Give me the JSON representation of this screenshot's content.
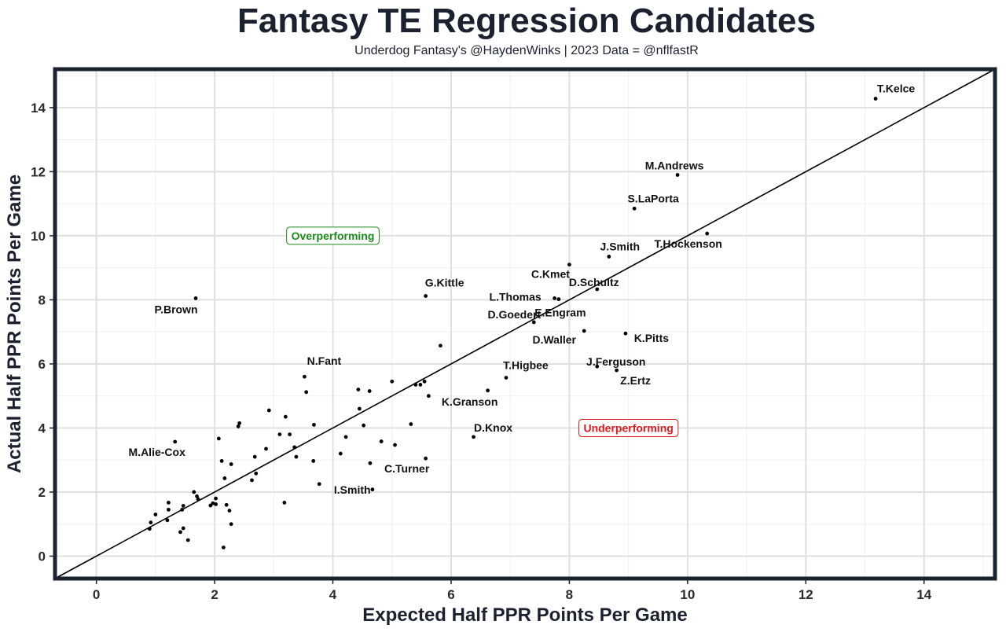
{
  "chart_data": {
    "type": "scatter",
    "title": "Fantasy TE Regression Candidates",
    "subtitle": "Underdog Fantasy's @HaydenWinks | 2023 Data = @nflfastR",
    "xlabel": "Expected Half PPR Points Per Game",
    "ylabel": "Actual Half PPR Points Per Game",
    "xlim": [
      -0.7,
      15.2
    ],
    "ylim": [
      -0.7,
      15.2
    ],
    "x_ticks": [
      0,
      2,
      4,
      6,
      8,
      10,
      12,
      14
    ],
    "y_ticks": [
      0,
      2,
      4,
      6,
      8,
      10,
      12,
      14
    ],
    "grid": true,
    "reference_line": "y = x",
    "annotations": [
      {
        "text": "Overperforming",
        "x": 4.0,
        "y": 10.0,
        "color": "#1a8a1a"
      },
      {
        "text": "Underperforming",
        "x": 9.0,
        "y": 4.0,
        "color": "#e3161b"
      }
    ],
    "labeled_points": [
      {
        "name": "T.Kelce",
        "x": 13.18,
        "y": 14.28
      },
      {
        "name": "M.Andrews",
        "x": 9.83,
        "y": 11.9
      },
      {
        "name": "S.LaPorta",
        "x": 9.1,
        "y": 10.85
      },
      {
        "name": "T.Hockenson",
        "x": 10.33,
        "y": 10.07
      },
      {
        "name": "J.Smith",
        "x": 8.67,
        "y": 9.35
      },
      {
        "name": "C.Kmet",
        "x": 8.0,
        "y": 9.1
      },
      {
        "name": "D.Schultz",
        "x": 8.47,
        "y": 8.33
      },
      {
        "name": "G.Kittle",
        "x": 5.57,
        "y": 8.12
      },
      {
        "name": "L.Thomas",
        "x": 7.75,
        "y": 8.05
      },
      {
        "name": "E.Engram",
        "x": 7.82,
        "y": 8.02
      },
      {
        "name": "P.Brown",
        "x": 1.68,
        "y": 8.05
      },
      {
        "name": "D.Goedert",
        "x": 7.4,
        "y": 7.3
      },
      {
        "name": "D.Waller",
        "x": 8.25,
        "y": 7.03
      },
      {
        "name": "K.Pitts",
        "x": 8.95,
        "y": 6.95
      },
      {
        "name": "J.Ferguson",
        "x": 8.47,
        "y": 5.92
      },
      {
        "name": "Z.Ertz",
        "x": 8.8,
        "y": 5.8
      },
      {
        "name": "T.Higbee",
        "x": 6.93,
        "y": 5.57
      },
      {
        "name": "N.Fant",
        "x": 3.52,
        "y": 5.6
      },
      {
        "name": "K.Granson",
        "x": 6.62,
        "y": 5.17
      },
      {
        "name": "D.Knox",
        "x": 6.38,
        "y": 3.72
      },
      {
        "name": "M.Alie-Cox",
        "x": 1.33,
        "y": 3.57
      },
      {
        "name": "C.Turner",
        "x": 5.57,
        "y": 3.05
      },
      {
        "name": "I.Smith",
        "x": 3.77,
        "y": 2.25
      }
    ],
    "other_points": [
      [
        5.82,
        6.57
      ],
      [
        5.0,
        5.45
      ],
      [
        5.55,
        5.45
      ],
      [
        5.4,
        5.35
      ],
      [
        5.48,
        5.35
      ],
      [
        5.62,
        5.0
      ],
      [
        3.55,
        5.12
      ],
      [
        4.62,
        5.15
      ],
      [
        4.43,
        5.2
      ],
      [
        4.45,
        4.6
      ],
      [
        4.52,
        4.08
      ],
      [
        4.22,
        3.72
      ],
      [
        2.92,
        4.55
      ],
      [
        3.2,
        4.35
      ],
      [
        3.68,
        4.1
      ],
      [
        2.42,
        4.15
      ],
      [
        2.4,
        4.05
      ],
      [
        3.1,
        3.8
      ],
      [
        3.27,
        3.8
      ],
      [
        2.07,
        3.67
      ],
      [
        3.35,
        3.4
      ],
      [
        2.87,
        3.35
      ],
      [
        3.38,
        3.1
      ],
      [
        2.68,
        3.1
      ],
      [
        4.13,
        3.2
      ],
      [
        3.67,
        2.97
      ],
      [
        4.82,
        3.58
      ],
      [
        5.05,
        3.47
      ],
      [
        5.32,
        4.12
      ],
      [
        2.12,
        2.97
      ],
      [
        2.28,
        2.87
      ],
      [
        4.63,
        2.9
      ],
      [
        2.7,
        2.58
      ],
      [
        2.63,
        2.37
      ],
      [
        2.17,
        2.43
      ],
      [
        4.67,
        2.08
      ],
      [
        1.22,
        1.67
      ],
      [
        1.72,
        1.78
      ],
      [
        2.02,
        1.8
      ],
      [
        1.65,
        2.0
      ],
      [
        1.7,
        1.87
      ],
      [
        3.18,
        1.67
      ],
      [
        1.22,
        1.45
      ],
      [
        1.47,
        1.57
      ],
      [
        1.93,
        1.58
      ],
      [
        2.02,
        1.62
      ],
      [
        1.97,
        1.65
      ],
      [
        2.2,
        1.6
      ],
      [
        2.25,
        1.42
      ],
      [
        1.45,
        1.45
      ],
      [
        1.0,
        1.3
      ],
      [
        1.2,
        1.12
      ],
      [
        0.92,
        1.05
      ],
      [
        2.28,
        1.0
      ],
      [
        0.9,
        0.85
      ],
      [
        1.47,
        0.87
      ],
      [
        1.42,
        0.75
      ],
      [
        1.55,
        0.5
      ],
      [
        2.15,
        0.27
      ]
    ]
  }
}
